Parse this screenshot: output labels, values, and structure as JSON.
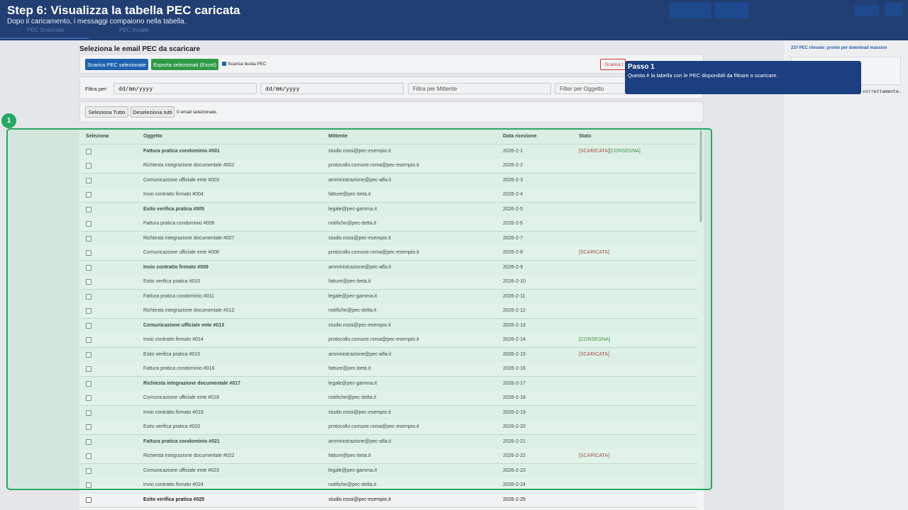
{
  "header": {
    "title": "Step 6: Visualizza la tabella PEC caricata",
    "subtitle": "Dopo il caricamento, i messaggi compaiono nella tabella."
  },
  "tabs": [
    "PEC Scaricate",
    "PEC Inviate"
  ],
  "section_title": "Seleziona le email PEC da scaricare",
  "toolbar": {
    "download_button": "Scarica PEC selezionate",
    "export_button": "Esporta selezionati (Excel)",
    "envelope_checkbox": "Scarica busta PEC",
    "red_button": "Scarica t"
  },
  "filters": {
    "label": "Filtra per:",
    "date_from": "dd/mm/yyyy",
    "date_to": "dd/mm/yyyy",
    "sender_placeholder": "Filtra per Mittente",
    "subject_placeholder": "Filter per Oggetto"
  },
  "selection": {
    "select_all": "Seleziona Tutto",
    "deselect_all": "Deseleziona tutti",
    "count": "0 email selezionate."
  },
  "table": {
    "headers": [
      "Seleziona",
      "Oggetto",
      "Mittente",
      "Data ricezione",
      "Stato"
    ],
    "rows": [
      {
        "oggetto": "Fattura pratica condominio #001",
        "mittente": "studio.rossi@pec-esempio.it",
        "data": "2026-2-1",
        "bold": true,
        "stato": [
          {
            "text": "[SCARICATA]",
            "color": "#a3231f"
          },
          {
            "text": "[CONSEGNA]",
            "color": "#1e7b22"
          }
        ]
      },
      {
        "oggetto": "Richiesta integrazione documentale #002",
        "mittente": "protocollo.comune.roma@pec-esempio.it",
        "data": "2026-2-2",
        "bold": false,
        "stato": []
      },
      {
        "oggetto": "Comunicazione ufficiale ente #003",
        "mittente": "amministrazione@pec-alfa.it",
        "data": "2026-2-3",
        "bold": false,
        "stato": []
      },
      {
        "oggetto": "Invio contratto firmato #004",
        "mittente": "fatture@pec-beta.it",
        "data": "2026-2-4",
        "bold": false,
        "stato": []
      },
      {
        "oggetto": "Esito verifica pratica #005",
        "mittente": "legale@pec-gamma.it",
        "data": "2026-2-5",
        "bold": true,
        "stato": []
      },
      {
        "oggetto": "Fattura pratica condominio #006",
        "mittente": "notifiche@pec-delta.it",
        "data": "2026-2-6",
        "bold": false,
        "stato": []
      },
      {
        "oggetto": "Richiesta integrazione documentale #007",
        "mittente": "studio.rossi@pec-esempio.it",
        "data": "2026-2-7",
        "bold": false,
        "stato": []
      },
      {
        "oggetto": "Comunicazione ufficiale ente #008",
        "mittente": "protocollo.comune.roma@pec-esempio.it",
        "data": "2026-2-8",
        "bold": false,
        "stato": [
          {
            "text": "[SCARICATA]",
            "color": "#a3231f"
          }
        ]
      },
      {
        "oggetto": "Invio contratto firmato #009",
        "mittente": "amministrazione@pec-alfa.it",
        "data": "2026-2-9",
        "bold": true,
        "stato": []
      },
      {
        "oggetto": "Esito verifica pratica #010",
        "mittente": "fatture@pec-beta.it",
        "data": "2026-2-10",
        "bold": false,
        "stato": []
      },
      {
        "oggetto": "Fattura pratica condominio #011",
        "mittente": "legale@pec-gamma.it",
        "data": "2026-2-11",
        "bold": false,
        "stato": []
      },
      {
        "oggetto": "Richiesta integrazione documentale #012",
        "mittente": "notifiche@pec-delta.it",
        "data": "2026-2-12",
        "bold": false,
        "stato": []
      },
      {
        "oggetto": "Comunicazione ufficiale ente #013",
        "mittente": "studio.rossi@pec-esempio.it",
        "data": "2026-2-13",
        "bold": true,
        "stato": []
      },
      {
        "oggetto": "Invio contratto firmato #014",
        "mittente": "protocollo.comune.roma@pec-esempio.it",
        "data": "2026-2-14",
        "bold": false,
        "stato": [
          {
            "text": "[CONSEGNA]",
            "color": "#1e7b22"
          }
        ]
      },
      {
        "oggetto": "Esito verifica pratica #015",
        "mittente": "amministrazione@pec-alfa.it",
        "data": "2026-2-15",
        "bold": false,
        "stato": [
          {
            "text": "[SCARICATA]",
            "color": "#a3231f"
          }
        ]
      },
      {
        "oggetto": "Fattura pratica condominio #016",
        "mittente": "fatture@pec-beta.it",
        "data": "2026-2-16",
        "bold": false,
        "stato": []
      },
      {
        "oggetto": "Richiesta integrazione documentale #017",
        "mittente": "legale@pec-gamma.it",
        "data": "2026-2-17",
        "bold": true,
        "stato": []
      },
      {
        "oggetto": "Comunicazione ufficiale ente #018",
        "mittente": "notifiche@pec-delta.it",
        "data": "2026-2-18",
        "bold": false,
        "stato": []
      },
      {
        "oggetto": "Invio contratto firmato #019",
        "mittente": "studio.rossi@pec-esempio.it",
        "data": "2026-2-19",
        "bold": false,
        "stato": []
      },
      {
        "oggetto": "Esito verifica pratica #020",
        "mittente": "protocollo.comune.roma@pec-esempio.it",
        "data": "2026-2-20",
        "bold": false,
        "stato": []
      },
      {
        "oggetto": "Fattura pratica condominio #021",
        "mittente": "amministrazione@pec-alfa.it",
        "data": "2026-2-21",
        "bold": true,
        "stato": []
      },
      {
        "oggetto": "Richiesta integrazione documentale #022",
        "mittente": "fatture@pec-beta.it",
        "data": "2026-2-22",
        "bold": false,
        "stato": [
          {
            "text": "[SCARICATA]",
            "color": "#a3231f"
          }
        ]
      },
      {
        "oggetto": "Comunicazione ufficiale ente #023",
        "mittente": "legale@pec-gamma.it",
        "data": "2026-2-23",
        "bold": false,
        "stato": []
      },
      {
        "oggetto": "Invio contratto firmato #024",
        "mittente": "notifiche@pec-delta.it",
        "data": "2026-2-24",
        "bold": false,
        "stato": []
      },
      {
        "oggetto": "Esito verifica pratica #025",
        "mittente": "studio.rossi@pec-esempio.it",
        "data": "2026-2-25",
        "bold": true,
        "stato": []
      }
    ]
  },
  "side_panel": {
    "summary": "237 PEC rilevate: pronte per download massivo",
    "log_tail": "correttamente."
  },
  "tour": {
    "badge": "1",
    "step_title": "Passo 1",
    "step_text": "Questa è la tabella con le PEC disponibili da filtrare o scaricare."
  }
}
